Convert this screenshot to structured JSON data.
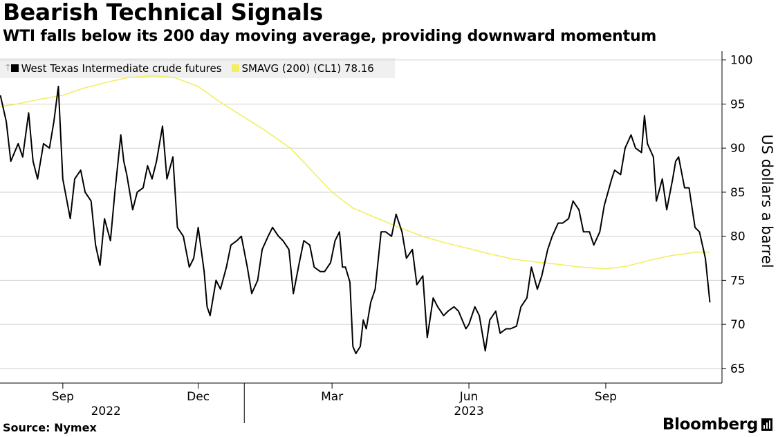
{
  "header": {
    "title": "Bearish Technical Signals",
    "subtitle": "WTI falls below its 200 day moving average, providing downward momentum"
  },
  "legend": {
    "series1_label": "West Texas Intermediate crude futures",
    "series2_label": "SMAVG (200) (CL1) 78.16"
  },
  "footer": {
    "source": "Source: Nymex",
    "brand": "Bloomberg"
  },
  "colors": {
    "price_line": "#000000",
    "sma_line": "#f3ee63",
    "gridline": "#cfcfcf",
    "legend_bg": "#f0f0f0"
  },
  "icons": {
    "brand_mark": "bar-chart-icon"
  },
  "chart_data": {
    "type": "line",
    "title": "Bearish Technical Signals",
    "subtitle": "WTI falls below its 200 day moving average, providing downward momentum",
    "ylabel": "US dollars a barrel",
    "ylim": [
      63.5,
      101
    ],
    "y_ticks": [
      65,
      70,
      75,
      80,
      85,
      90,
      95,
      100
    ],
    "x_ticks": [
      {
        "label": "Sep",
        "date": "2022-09-01"
      },
      {
        "label": "Dec",
        "date": "2022-12-01"
      },
      {
        "label": "Mar",
        "date": "2023-03-01"
      },
      {
        "label": "Jun",
        "date": "2023-06-01"
      },
      {
        "label": "Sep",
        "date": "2023-09-01"
      }
    ],
    "year_labels": [
      {
        "label": "2022",
        "date": "2022-09-30"
      },
      {
        "label": "2023",
        "date": "2023-06-01"
      }
    ],
    "xlim": [
      "2022-07-21",
      "2023-11-10"
    ],
    "y_axis_position": "right",
    "grid": "horizontal",
    "legend_position": "top-left",
    "series": [
      {
        "name": "West Texas Intermediate crude futures",
        "color": "#000000",
        "points": [
          [
            "2022-07-21",
            96.0
          ],
          [
            "2022-07-25",
            93.0
          ],
          [
            "2022-07-28",
            88.5
          ],
          [
            "2022-08-02",
            90.5
          ],
          [
            "2022-08-05",
            89.0
          ],
          [
            "2022-08-09",
            94.0
          ],
          [
            "2022-08-12",
            88.5
          ],
          [
            "2022-08-15",
            86.5
          ],
          [
            "2022-08-19",
            90.5
          ],
          [
            "2022-08-23",
            90.0
          ],
          [
            "2022-08-26",
            93.0
          ],
          [
            "2022-08-29",
            97.0
          ],
          [
            "2022-09-01",
            86.5
          ],
          [
            "2022-09-06",
            82.0
          ],
          [
            "2022-09-09",
            86.5
          ],
          [
            "2022-09-13",
            87.5
          ],
          [
            "2022-09-16",
            85.0
          ],
          [
            "2022-09-20",
            84.0
          ],
          [
            "2022-09-23",
            79.0
          ],
          [
            "2022-09-26",
            76.7
          ],
          [
            "2022-09-29",
            82.0
          ],
          [
            "2022-10-03",
            79.5
          ],
          [
            "2022-10-06",
            85.0
          ],
          [
            "2022-10-10",
            91.5
          ],
          [
            "2022-10-12",
            88.5
          ],
          [
            "2022-10-14",
            87.0
          ],
          [
            "2022-10-18",
            83.0
          ],
          [
            "2022-10-21",
            85.0
          ],
          [
            "2022-10-25",
            85.5
          ],
          [
            "2022-10-28",
            88.0
          ],
          [
            "2022-10-31",
            86.5
          ],
          [
            "2022-11-03",
            88.5
          ],
          [
            "2022-11-07",
            92.5
          ],
          [
            "2022-11-10",
            86.5
          ],
          [
            "2022-11-14",
            89.0
          ],
          [
            "2022-11-17",
            81.0
          ],
          [
            "2022-11-21",
            80.0
          ],
          [
            "2022-11-25",
            76.5
          ],
          [
            "2022-11-28",
            77.5
          ],
          [
            "2022-12-01",
            81.0
          ],
          [
            "2022-12-05",
            76.0
          ],
          [
            "2022-12-07",
            72.0
          ],
          [
            "2022-12-09",
            71.0
          ],
          [
            "2022-12-13",
            75.0
          ],
          [
            "2022-12-16",
            74.0
          ],
          [
            "2022-12-20",
            76.5
          ],
          [
            "2022-12-23",
            79.0
          ],
          [
            "2022-12-27",
            79.5
          ],
          [
            "2022-12-30",
            80.0
          ],
          [
            "2023-01-03",
            76.5
          ],
          [
            "2023-01-06",
            73.5
          ],
          [
            "2023-01-10",
            75.0
          ],
          [
            "2023-01-13",
            78.5
          ],
          [
            "2023-01-17",
            80.0
          ],
          [
            "2023-01-20",
            81.0
          ],
          [
            "2023-01-24",
            80.0
          ],
          [
            "2023-01-27",
            79.5
          ],
          [
            "2023-01-31",
            78.5
          ],
          [
            "2023-02-03",
            73.5
          ],
          [
            "2023-02-07",
            77.0
          ],
          [
            "2023-02-10",
            79.5
          ],
          [
            "2023-02-14",
            79.0
          ],
          [
            "2023-02-17",
            76.5
          ],
          [
            "2023-02-21",
            76.0
          ],
          [
            "2023-02-24",
            76.0
          ],
          [
            "2023-02-28",
            77.0
          ],
          [
            "2023-03-03",
            79.5
          ],
          [
            "2023-03-06",
            80.5
          ],
          [
            "2023-03-08",
            76.5
          ],
          [
            "2023-03-10",
            76.5
          ],
          [
            "2023-03-13",
            74.8
          ],
          [
            "2023-03-15",
            67.5
          ],
          [
            "2023-03-17",
            66.7
          ],
          [
            "2023-03-20",
            67.5
          ],
          [
            "2023-03-22",
            70.5
          ],
          [
            "2023-03-24",
            69.5
          ],
          [
            "2023-03-27",
            72.5
          ],
          [
            "2023-03-30",
            74.0
          ],
          [
            "2023-04-03",
            80.5
          ],
          [
            "2023-04-06",
            80.5
          ],
          [
            "2023-04-10",
            80.0
          ],
          [
            "2023-04-13",
            82.5
          ],
          [
            "2023-04-17",
            80.5
          ],
          [
            "2023-04-20",
            77.5
          ],
          [
            "2023-04-24",
            78.5
          ],
          [
            "2023-04-27",
            74.5
          ],
          [
            "2023-05-01",
            75.5
          ],
          [
            "2023-05-04",
            68.5
          ],
          [
            "2023-05-08",
            73.0
          ],
          [
            "2023-05-11",
            72.0
          ],
          [
            "2023-05-15",
            71.0
          ],
          [
            "2023-05-18",
            71.5
          ],
          [
            "2023-05-22",
            72.0
          ],
          [
            "2023-05-25",
            71.5
          ],
          [
            "2023-05-30",
            69.5
          ],
          [
            "2023-06-01",
            70.0
          ],
          [
            "2023-06-05",
            72.0
          ],
          [
            "2023-06-08",
            71.0
          ],
          [
            "2023-06-12",
            67.0
          ],
          [
            "2023-06-15",
            70.5
          ],
          [
            "2023-06-19",
            71.5
          ],
          [
            "2023-06-22",
            69.0
          ],
          [
            "2023-06-26",
            69.5
          ],
          [
            "2023-06-29",
            69.5
          ],
          [
            "2023-07-03",
            69.8
          ],
          [
            "2023-07-06",
            72.0
          ],
          [
            "2023-07-10",
            73.0
          ],
          [
            "2023-07-13",
            76.5
          ],
          [
            "2023-07-17",
            74.0
          ],
          [
            "2023-07-20",
            75.5
          ],
          [
            "2023-07-24",
            78.5
          ],
          [
            "2023-07-27",
            80.0
          ],
          [
            "2023-07-31",
            81.5
          ],
          [
            "2023-08-03",
            81.5
          ],
          [
            "2023-08-07",
            82.0
          ],
          [
            "2023-08-10",
            84.0
          ],
          [
            "2023-08-14",
            83.0
          ],
          [
            "2023-08-17",
            80.5
          ],
          [
            "2023-08-21",
            80.5
          ],
          [
            "2023-08-24",
            79.0
          ],
          [
            "2023-08-28",
            80.5
          ],
          [
            "2023-08-31",
            83.5
          ],
          [
            "2023-09-05",
            86.5
          ],
          [
            "2023-09-07",
            87.5
          ],
          [
            "2023-09-11",
            87.0
          ],
          [
            "2023-09-14",
            90.0
          ],
          [
            "2023-09-18",
            91.5
          ],
          [
            "2023-09-21",
            90.0
          ],
          [
            "2023-09-25",
            89.5
          ],
          [
            "2023-09-27",
            93.7
          ],
          [
            "2023-09-29",
            90.5
          ],
          [
            "2023-10-03",
            89.0
          ],
          [
            "2023-10-05",
            84.0
          ],
          [
            "2023-10-09",
            86.5
          ],
          [
            "2023-10-12",
            83.0
          ],
          [
            "2023-10-16",
            86.5
          ],
          [
            "2023-10-18",
            88.5
          ],
          [
            "2023-10-20",
            89.0
          ],
          [
            "2023-10-24",
            85.5
          ],
          [
            "2023-10-27",
            85.5
          ],
          [
            "2023-10-31",
            81.0
          ],
          [
            "2023-11-03",
            80.5
          ],
          [
            "2023-11-07",
            77.5
          ],
          [
            "2023-11-10",
            72.5
          ]
        ]
      },
      {
        "name": "SMAVG (200) (CL1) 78.16",
        "color": "#f3ee63",
        "points": [
          [
            "2022-07-21",
            94.7
          ],
          [
            "2022-08-01",
            95.0
          ],
          [
            "2022-08-15",
            95.5
          ],
          [
            "2022-09-01",
            96.0
          ],
          [
            "2022-09-15",
            96.8
          ],
          [
            "2022-10-01",
            97.5
          ],
          [
            "2022-10-15",
            98.0
          ],
          [
            "2022-11-01",
            98.2
          ],
          [
            "2022-11-15",
            98.0
          ],
          [
            "2022-12-01",
            97.0
          ],
          [
            "2022-12-15",
            95.3
          ],
          [
            "2023-01-01",
            93.5
          ],
          [
            "2023-01-15",
            92.0
          ],
          [
            "2023-02-01",
            90.0
          ],
          [
            "2023-02-15",
            87.5
          ],
          [
            "2023-03-01",
            85.0
          ],
          [
            "2023-03-15",
            83.2
          ],
          [
            "2023-04-01",
            82.0
          ],
          [
            "2023-04-15",
            81.0
          ],
          [
            "2023-05-01",
            80.0
          ],
          [
            "2023-05-15",
            79.3
          ],
          [
            "2023-06-01",
            78.6
          ],
          [
            "2023-06-15",
            78.0
          ],
          [
            "2023-07-01",
            77.4
          ],
          [
            "2023-07-15",
            77.1
          ],
          [
            "2023-08-01",
            76.8
          ],
          [
            "2023-08-15",
            76.5
          ],
          [
            "2023-09-01",
            76.3
          ],
          [
            "2023-09-15",
            76.6
          ],
          [
            "2023-10-01",
            77.3
          ],
          [
            "2023-10-15",
            77.8
          ],
          [
            "2023-11-01",
            78.2
          ],
          [
            "2023-11-10",
            78.16
          ]
        ]
      }
    ]
  }
}
